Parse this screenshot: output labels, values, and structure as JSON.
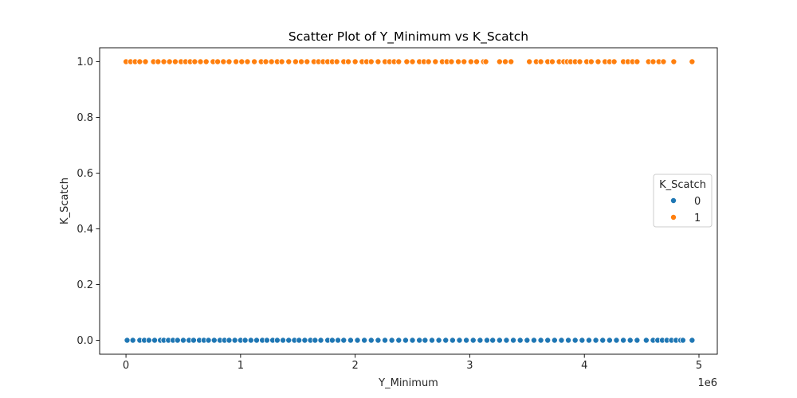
{
  "chart_data": {
    "type": "scatter",
    "title": "Scatter Plot of Y_Minimum vs K_Scatch",
    "xlabel": "Y_Minimum",
    "ylabel": "K_Scatch",
    "x_offset_label": "1e6",
    "xlim": [
      -230000,
      5160000
    ],
    "ylim": [
      -0.05,
      1.05
    ],
    "x_ticks": [
      0,
      1000000,
      2000000,
      3000000,
      4000000,
      5000000
    ],
    "x_tick_labels": [
      "0",
      "1",
      "2",
      "3",
      "4",
      "5"
    ],
    "y_ticks": [
      0.0,
      0.2,
      0.4,
      0.6,
      0.8,
      1.0
    ],
    "y_tick_labels": [
      "0.0",
      "0.2",
      "0.4",
      "0.6",
      "0.8",
      "1.0"
    ],
    "grid": false,
    "legend": {
      "title": "K_Scatch",
      "placement": "center-right",
      "entries": [
        "0",
        "1"
      ]
    },
    "series": [
      {
        "name": "0",
        "color": "#1f77b4",
        "y": 0,
        "x": [
          10000,
          60000,
          120000,
          160000,
          200000,
          250000,
          300000,
          330000,
          370000,
          410000,
          450000,
          500000,
          550000,
          590000,
          640000,
          680000,
          720000,
          770000,
          820000,
          860000,
          900000,
          950000,
          1000000,
          1040000,
          1090000,
          1140000,
          1190000,
          1230000,
          1280000,
          1320000,
          1370000,
          1420000,
          1470000,
          1510000,
          1560000,
          1610000,
          1650000,
          1700000,
          1760000,
          1800000,
          1850000,
          1900000,
          1960000,
          2020000,
          2080000,
          2140000,
          2200000,
          2260000,
          2320000,
          2380000,
          2440000,
          2500000,
          2560000,
          2610000,
          2670000,
          2730000,
          2790000,
          2850000,
          2910000,
          2970000,
          3030000,
          3090000,
          3150000,
          3200000,
          3260000,
          3320000,
          3380000,
          3440000,
          3500000,
          3560000,
          3620000,
          3680000,
          3740000,
          3800000,
          3860000,
          3920000,
          3980000,
          4040000,
          4100000,
          4160000,
          4220000,
          4280000,
          4340000,
          4400000,
          4460000,
          4540000,
          4600000,
          4640000,
          4680000,
          4720000,
          4760000,
          4800000,
          4840000,
          4860000,
          4940000
        ]
      },
      {
        "name": "1",
        "color": "#ff7f0e",
        "y": 1,
        "x": [
          0,
          40000,
          80000,
          120000,
          170000,
          240000,
          280000,
          330000,
          380000,
          430000,
          480000,
          520000,
          560000,
          600000,
          650000,
          700000,
          760000,
          800000,
          850000,
          900000,
          960000,
          1010000,
          1060000,
          1120000,
          1180000,
          1220000,
          1270000,
          1320000,
          1360000,
          1420000,
          1480000,
          1530000,
          1580000,
          1640000,
          1680000,
          1720000,
          1760000,
          1800000,
          1840000,
          1900000,
          1940000,
          2000000,
          2060000,
          2100000,
          2140000,
          2200000,
          2260000,
          2300000,
          2340000,
          2380000,
          2450000,
          2500000,
          2560000,
          2600000,
          2640000,
          2700000,
          2760000,
          2800000,
          2840000,
          2900000,
          2950000,
          3010000,
          3060000,
          3120000,
          3140000,
          3260000,
          3310000,
          3360000,
          3520000,
          3580000,
          3620000,
          3680000,
          3720000,
          3780000,
          3820000,
          3850000,
          3880000,
          3920000,
          3960000,
          4020000,
          4060000,
          4120000,
          4180000,
          4220000,
          4260000,
          4340000,
          4380000,
          4420000,
          4460000,
          4560000,
          4600000,
          4650000,
          4690000,
          4780000,
          4940000
        ]
      }
    ]
  }
}
